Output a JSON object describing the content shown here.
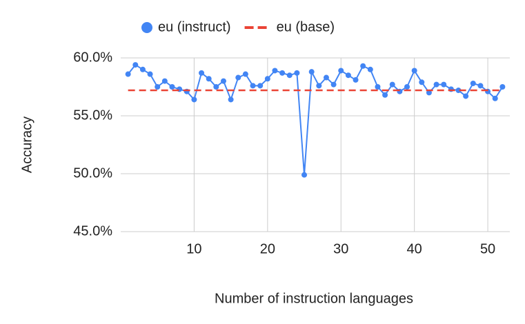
{
  "chart_data": {
    "type": "line",
    "x_label": "Number of instruction languages",
    "y_label": "Accuracy",
    "x": [
      1,
      2,
      3,
      4,
      5,
      6,
      7,
      8,
      9,
      10,
      11,
      12,
      13,
      14,
      15,
      16,
      17,
      18,
      19,
      20,
      21,
      22,
      23,
      24,
      25,
      26,
      27,
      28,
      29,
      30,
      31,
      32,
      33,
      34,
      35,
      36,
      37,
      38,
      39,
      40,
      41,
      42,
      43,
      44,
      45,
      46,
      47,
      48,
      49,
      50,
      51,
      52
    ],
    "series": [
      {
        "name": "eu (instruct)",
        "color": "#4285f4",
        "style": "solid",
        "markers": true,
        "values": [
          58.6,
          59.4,
          59.0,
          58.6,
          57.5,
          58.0,
          57.5,
          57.3,
          57.1,
          56.4,
          58.7,
          58.2,
          57.5,
          58.0,
          56.4,
          58.3,
          58.6,
          57.6,
          57.6,
          58.2,
          58.9,
          58.7,
          58.5,
          58.7,
          49.9,
          58.8,
          57.6,
          58.3,
          57.7,
          58.9,
          58.5,
          58.1,
          59.3,
          59.0,
          57.5,
          56.8,
          57.7,
          57.1,
          57.5,
          58.9,
          57.9,
          57.0,
          57.7,
          57.7,
          57.3,
          57.2,
          56.7,
          57.8,
          57.6,
          57.1,
          56.5,
          57.5
        ]
      },
      {
        "name": "eu (base)",
        "color": "#ea4335",
        "style": "dashed",
        "markers": false,
        "values": [
          57.2,
          57.2,
          57.2,
          57.2,
          57.2,
          57.2,
          57.2,
          57.2,
          57.2,
          57.2,
          57.2,
          57.2,
          57.2,
          57.2,
          57.2,
          57.2,
          57.2,
          57.2,
          57.2,
          57.2,
          57.2,
          57.2,
          57.2,
          57.2,
          57.2,
          57.2,
          57.2,
          57.2,
          57.2,
          57.2,
          57.2,
          57.2,
          57.2,
          57.2,
          57.2,
          57.2,
          57.2,
          57.2,
          57.2,
          57.2,
          57.2,
          57.2,
          57.2,
          57.2,
          57.2,
          57.2,
          57.2,
          57.2,
          57.2,
          57.2,
          57.2,
          57.2
        ]
      }
    ],
    "xlim": [
      0,
      53
    ],
    "xticks": [
      10,
      20,
      30,
      40,
      50
    ],
    "ylim": [
      45,
      60
    ],
    "yticks": [
      {
        "value": 45,
        "label": "45.0%"
      },
      {
        "value": 50,
        "label": "50.0%"
      },
      {
        "value": 55,
        "label": "55.0%"
      },
      {
        "value": 60,
        "label": "60.0%"
      }
    ],
    "grid": true,
    "legend": "top"
  }
}
